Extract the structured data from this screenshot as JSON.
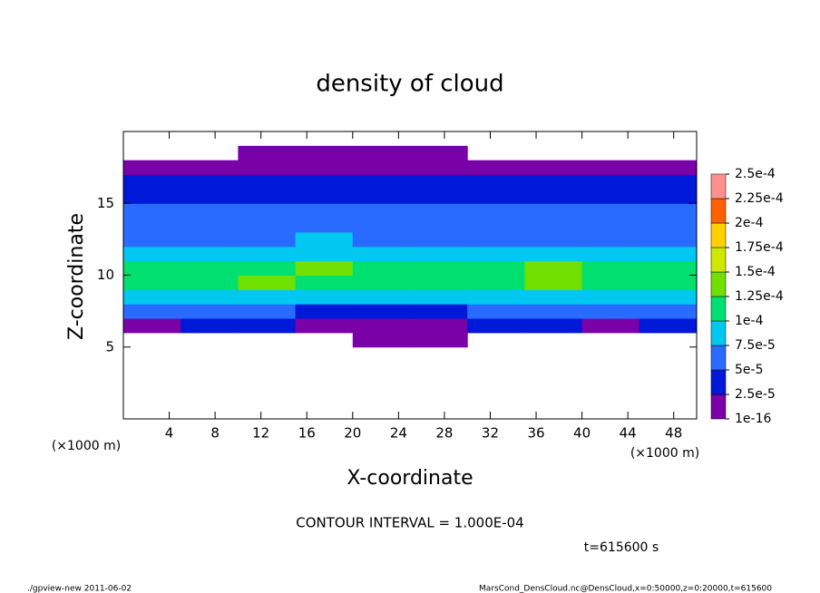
{
  "chart_data": {
    "type": "heatmap",
    "title": "density of cloud",
    "xlabel": "X-coordinate",
    "ylabel": "Z-coordinate",
    "x_unit": "(×1000 m)",
    "y_unit": "(×1000 m)",
    "annotation": "CONTOUR INTERVAL = 1.000E-04",
    "time": "t=615600 s",
    "footer_left": "./gpview-new  2011-06-02",
    "footer_right": "MarsCond_DensCloud.nc@DensCloud,x=0:50000,z=0:20000,t=615600",
    "xlim": [
      0,
      50
    ],
    "ylim": [
      0,
      20
    ],
    "xticks": [
      4,
      8,
      12,
      16,
      20,
      24,
      28,
      32,
      36,
      40,
      44,
      48
    ],
    "yticks": [
      5,
      10,
      15
    ],
    "x": [
      2.5,
      7.5,
      12.5,
      17.5,
      22.5,
      27.5,
      32.5,
      37.5,
      42.5,
      47.5
    ],
    "y": [
      5.5,
      6.5,
      7.5,
      8.5,
      9.5,
      10.5,
      11.5,
      12.5,
      13.5,
      14.5,
      15.5,
      16.5,
      17.5,
      18.5
    ],
    "z": [
      [
        null,
        null,
        null,
        null,
        1e-05,
        1e-05,
        null,
        null,
        null,
        null
      ],
      [
        2e-05,
        3e-05,
        3e-05,
        2e-05,
        1e-05,
        1e-05,
        3e-05,
        3e-05,
        2e-05,
        3e-05
      ],
      [
        6e-05,
        6e-05,
        5e-05,
        4e-05,
        4e-05,
        4e-05,
        6e-05,
        6e-05,
        5e-05,
        6e-05
      ],
      [
        9e-05,
        9e-05,
        8e-05,
        8e-05,
        9e-05,
        9e-05,
        9e-05,
        8e-05,
        9e-05,
        9e-05
      ],
      [
        0.00012,
        0.00012,
        0.00013,
        0.00012,
        0.00011,
        0.00012,
        0.00012,
        0.00013,
        0.00012,
        0.00012
      ],
      [
        0.00011,
        0.00012,
        0.00012,
        0.00013,
        0.00011,
        0.00011,
        0.00012,
        0.00013,
        0.00012,
        0.00011
      ],
      [
        8e-05,
        8e-05,
        9e-05,
        9e-05,
        8e-05,
        8e-05,
        8e-05,
        9e-05,
        9e-05,
        8e-05
      ],
      [
        7e-05,
        7e-05,
        7e-05,
        8e-05,
        7e-05,
        7e-05,
        7e-05,
        7e-05,
        7e-05,
        7e-05
      ],
      [
        6e-05,
        6e-05,
        6e-05,
        6e-05,
        6e-05,
        6e-05,
        6e-05,
        6e-05,
        6e-05,
        6e-05
      ],
      [
        5e-05,
        5e-05,
        5e-05,
        5e-05,
        5e-05,
        5e-05,
        5e-05,
        5e-05,
        5e-05,
        5e-05
      ],
      [
        4e-05,
        4e-05,
        4e-05,
        4e-05,
        4e-05,
        4e-05,
        4e-05,
        4e-05,
        4e-05,
        4e-05
      ],
      [
        3e-05,
        3e-05,
        3e-05,
        3e-05,
        3e-05,
        3e-05,
        3e-05,
        3e-05,
        3e-05,
        3e-05
      ],
      [
        1e-05,
        1e-05,
        1e-05,
        1e-05,
        1e-05,
        1e-05,
        1e-05,
        1e-05,
        1e-05,
        1e-05
      ],
      [
        null,
        null,
        1e-05,
        1e-05,
        1e-05,
        1e-05,
        null,
        null,
        null,
        null
      ]
    ],
    "levels": [
      {
        "value": 1e-16,
        "label": "1e-16"
      },
      {
        "value": 2.5e-05,
        "label": "2.5e-5"
      },
      {
        "value": 5e-05,
        "label": "5e-5"
      },
      {
        "value": 7.5e-05,
        "label": "7.5e-5"
      },
      {
        "value": 0.0001,
        "label": "1e-4"
      },
      {
        "value": 0.000125,
        "label": "1.25e-4"
      },
      {
        "value": 0.00015,
        "label": "1.5e-4"
      },
      {
        "value": 0.000175,
        "label": "1.75e-4"
      },
      {
        "value": 0.0002,
        "label": "2e-4"
      },
      {
        "value": 0.000225,
        "label": "2.25e-4"
      },
      {
        "value": 0.00025,
        "label": "2.5e-4"
      }
    ],
    "colors": [
      "#7a00a8",
      "#0018d8",
      "#2a6bff",
      "#00c8f0",
      "#00e070",
      "#70e000",
      "#d0e800",
      "#ffd000",
      "#ff6000",
      "#ff9090"
    ]
  }
}
